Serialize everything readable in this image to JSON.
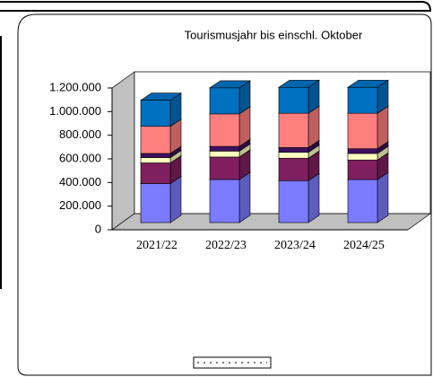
{
  "chart_data": {
    "type": "bar",
    "stacked": true,
    "three_d": true,
    "title": "Tourismusjahr bis einschl. Oktober",
    "categories": [
      "2021/22",
      "2022/23",
      "2023/24",
      "2024/25"
    ],
    "series": [
      {
        "color": "#7b7bff",
        "values": [
          330000,
          365000,
          355000,
          365000
        ]
      },
      {
        "color": "#7f1f5f",
        "values": [
          175000,
          190000,
          190000,
          165000
        ]
      },
      {
        "color": "#ffffc0",
        "values": [
          45000,
          50000,
          50000,
          55000
        ]
      },
      {
        "color": "#3f0f5f",
        "values": [
          35000,
          40000,
          40000,
          40000
        ]
      },
      {
        "color": "#ff7f7f",
        "values": [
          230000,
          275000,
          290000,
          300000
        ]
      },
      {
        "color": "#0070c0",
        "values": [
          220000,
          220000,
          220000,
          220000
        ]
      }
    ],
    "ylim": [
      0,
      1200000
    ],
    "yticks": [
      0,
      {
        "value": 200000,
        "label": "200.000"
      },
      {
        "value": 400000,
        "label": "400.000"
      },
      {
        "value": 600000,
        "label": "600.000"
      },
      {
        "value": 800000,
        "label": "800.000"
      },
      {
        "value": 1000000,
        "label": "1.000.000"
      },
      {
        "value": 1200000,
        "label": "1.200.000"
      }
    ]
  }
}
